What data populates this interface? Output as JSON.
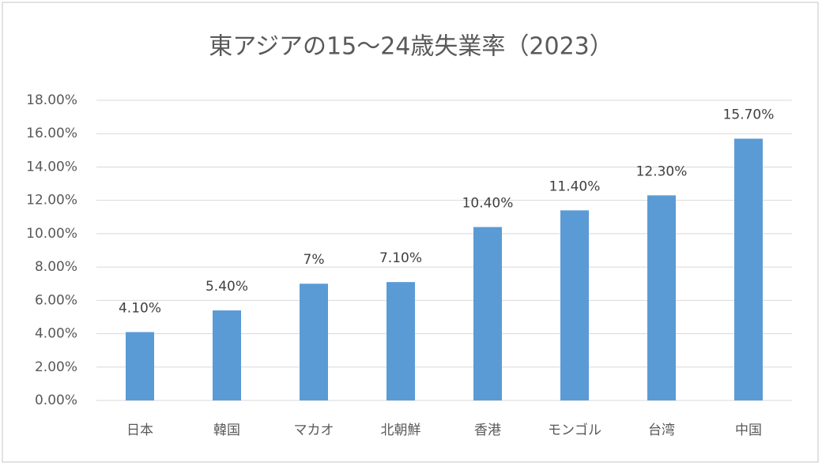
{
  "chart_data": {
    "type": "bar",
    "title": "東アジアの15～24歳失業率（2023）",
    "categories": [
      "日本",
      "韓国",
      "マカオ",
      "北朝鮮",
      "香港",
      "モンゴル",
      "台湾",
      "中国"
    ],
    "values": [
      4.1,
      5.4,
      7,
      7.1,
      10.4,
      11.4,
      12.3,
      15.7
    ],
    "value_labels": [
      "4.10%",
      "5.40%",
      "7%",
      "7.10%",
      "10.40%",
      "11.40%",
      "12.30%",
      "15.70%"
    ],
    "color": "#5b9bd5",
    "ylim": [
      0,
      18
    ],
    "yticks": [
      {
        "value": 0,
        "label": "0.00%"
      },
      {
        "value": 2,
        "label": "2.00%"
      },
      {
        "value": 4,
        "label": "4.00%"
      },
      {
        "value": 6,
        "label": "6.00%"
      },
      {
        "value": 8,
        "label": "8.00%"
      },
      {
        "value": 10,
        "label": "10.00%"
      },
      {
        "value": 12,
        "label": "12.00%"
      },
      {
        "value": 14,
        "label": "14.00%"
      },
      {
        "value": 16,
        "label": "16.00%"
      },
      {
        "value": 18,
        "label": "18.00%"
      }
    ],
    "grid": true
  }
}
